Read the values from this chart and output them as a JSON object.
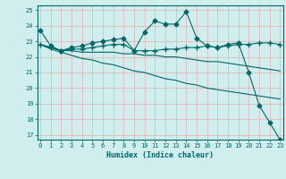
{
  "xlabel": "Humidex (Indice chaleur)",
  "ylabel": "",
  "xlim": [
    -0.3,
    23.3
  ],
  "ylim": [
    16.7,
    25.3
  ],
  "yticks": [
    17,
    18,
    19,
    20,
    21,
    22,
    23,
    24,
    25
  ],
  "xticks": [
    0,
    1,
    2,
    3,
    4,
    5,
    6,
    7,
    8,
    9,
    10,
    11,
    12,
    13,
    14,
    15,
    16,
    17,
    18,
    19,
    20,
    21,
    22,
    23
  ],
  "bg_color": "#d0eeee",
  "grid_color": "#e8b0b0",
  "line_color": "#006868",
  "series": [
    {
      "x": [
        0,
        1,
        2,
        3,
        4,
        5,
        6,
        7,
        8,
        9,
        10,
        11,
        12,
        13,
        14,
        15,
        16,
        17,
        18,
        19,
        20,
        21,
        22,
        23
      ],
      "y": [
        23.7,
        22.7,
        22.4,
        22.6,
        22.7,
        22.9,
        23.0,
        23.1,
        23.2,
        22.4,
        23.6,
        24.3,
        24.1,
        24.1,
        24.9,
        23.2,
        22.7,
        22.6,
        22.8,
        22.9,
        21.0,
        18.9,
        17.8,
        16.7
      ],
      "marker": "D",
      "markersize": 2.5
    },
    {
      "x": [
        0,
        1,
        2,
        3,
        4,
        5,
        6,
        7,
        8,
        9,
        10,
        11,
        12,
        13,
        14,
        15,
        16,
        17,
        18,
        19,
        20,
        21,
        22,
        23
      ],
      "y": [
        22.8,
        22.6,
        22.4,
        22.5,
        22.5,
        22.6,
        22.7,
        22.8,
        22.8,
        22.4,
        22.4,
        22.4,
        22.5,
        22.5,
        22.6,
        22.6,
        22.7,
        22.6,
        22.7,
        22.8,
        22.8,
        22.9,
        22.9,
        22.8
      ],
      "marker": "+",
      "markersize": 4
    },
    {
      "x": [
        0,
        1,
        2,
        3,
        4,
        5,
        6,
        7,
        8,
        9,
        10,
        11,
        12,
        13,
        14,
        15,
        16,
        17,
        18,
        19,
        20,
        21,
        22,
        23
      ],
      "y": [
        22.8,
        22.6,
        22.4,
        22.4,
        22.3,
        22.3,
        22.3,
        22.3,
        22.2,
        22.2,
        22.1,
        22.1,
        22.0,
        22.0,
        21.9,
        21.8,
        21.7,
        21.7,
        21.6,
        21.5,
        21.4,
        21.3,
        21.2,
        21.1
      ],
      "marker": null,
      "markersize": 0
    },
    {
      "x": [
        0,
        1,
        2,
        3,
        4,
        5,
        6,
        7,
        8,
        9,
        10,
        11,
        12,
        13,
        14,
        15,
        16,
        17,
        18,
        19,
        20,
        21,
        22,
        23
      ],
      "y": [
        22.8,
        22.5,
        22.3,
        22.1,
        21.9,
        21.8,
        21.6,
        21.5,
        21.3,
        21.1,
        21.0,
        20.8,
        20.6,
        20.5,
        20.3,
        20.2,
        20.0,
        19.9,
        19.8,
        19.7,
        19.6,
        19.5,
        19.4,
        19.3
      ],
      "marker": null,
      "markersize": 0
    }
  ]
}
